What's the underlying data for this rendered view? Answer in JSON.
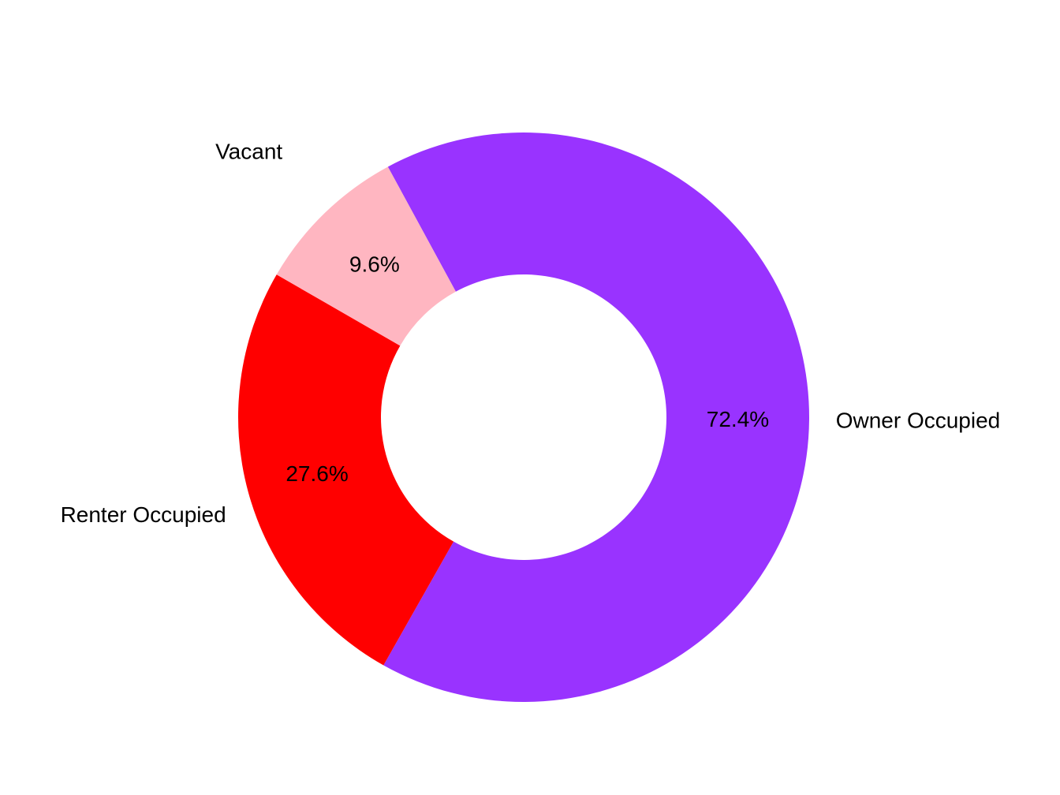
{
  "chart_data": {
    "type": "pie",
    "variant": "donut",
    "title": "",
    "categories": [
      "Owner Occupied",
      "Renter Occupied",
      "Vacant"
    ],
    "values": [
      72.4,
      27.6,
      9.6
    ],
    "value_labels": [
      "72.4%",
      "27.6%",
      "9.6%"
    ],
    "colors": [
      "#9933FF",
      "#FF0000",
      "#FFB6C1"
    ],
    "legend": "none"
  }
}
